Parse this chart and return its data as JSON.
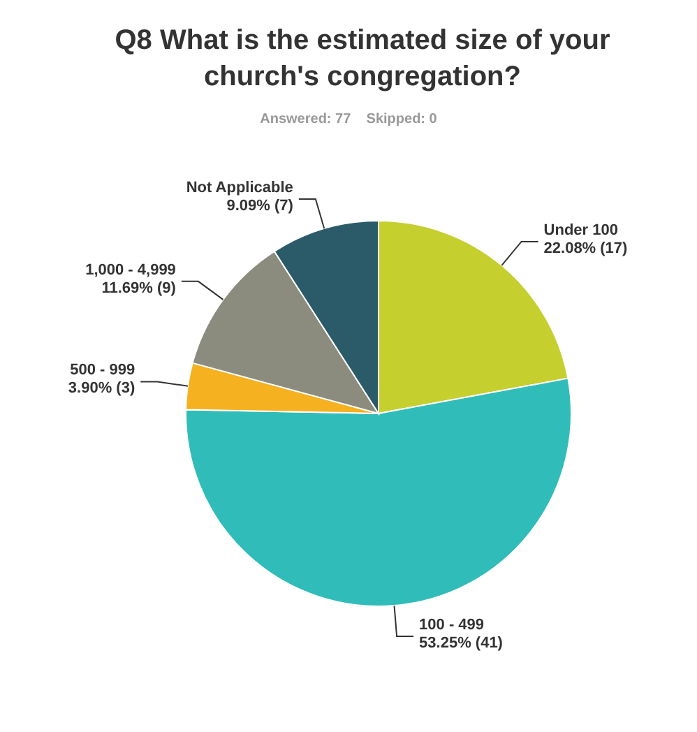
{
  "chart_data": {
    "type": "pie",
    "title": "Q8 What is the estimated size of your church's congregation?",
    "subtitle": "Answered: 77    Skipped: 0",
    "categories": [
      "Under 100",
      "100 - 499",
      "500 - 999",
      "1,000 - 4,999",
      "Not Applicable"
    ],
    "values": [
      22.08,
      53.25,
      3.9,
      11.69,
      9.09
    ],
    "value_labels": [
      "22.08% (17)",
      "53.25% (41)",
      "3.90% (3)",
      "11.69% (9)",
      "9.09% (7)"
    ],
    "colors": [
      "#c5cf2e",
      "#30bdb9",
      "#f5b120",
      "#8c8c7e",
      "#2b5b69"
    ]
  }
}
